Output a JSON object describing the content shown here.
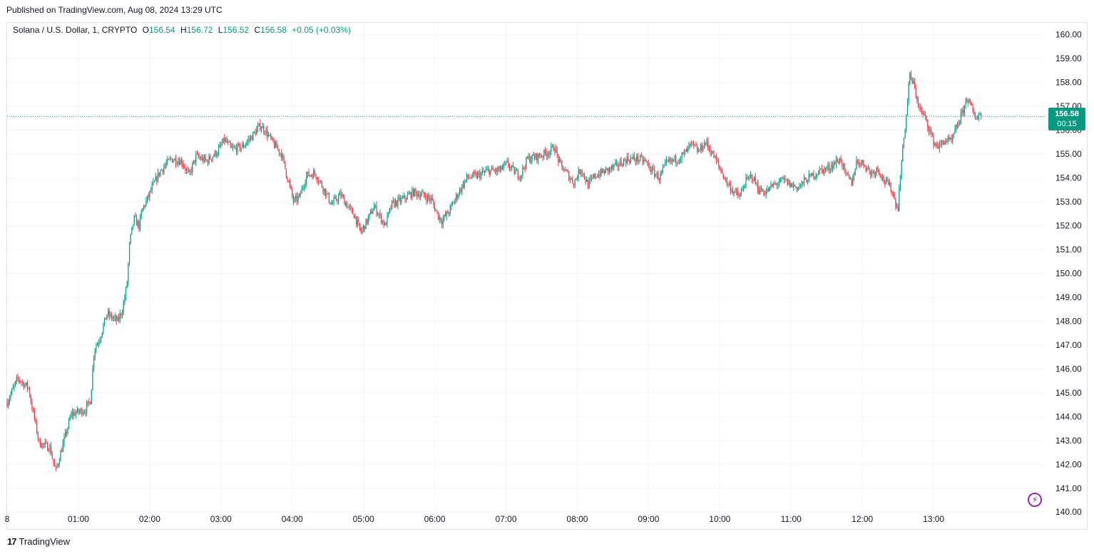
{
  "header": {
    "published": "Published on TradingView.com, Aug 08, 2024 13:29 UTC"
  },
  "legend": {
    "symbol": "Solana / U.S. Dollar, 1, CRYPTO",
    "o_label": "O",
    "o_value": "156.54",
    "h_label": "H",
    "h_value": "156.72",
    "l_label": "L",
    "l_value": "156.52",
    "c_label": "C",
    "c_value": "156.58",
    "change": "+0.05 (+0.03%)"
  },
  "price_tag": {
    "price": "156.58",
    "countdown": "00:15"
  },
  "brand": {
    "name": "TradingView",
    "logo": "17"
  },
  "colors": {
    "up": "#089981",
    "down": "#f23645",
    "grid": "#f0f3fa",
    "accent": "#9c27b0"
  },
  "chart_data": {
    "type": "candlestick",
    "interval_minutes": 1,
    "y_ticks": [
      140,
      141,
      142,
      143,
      144,
      145,
      146,
      147,
      148,
      149,
      150,
      151,
      152,
      153,
      154,
      155,
      156,
      157,
      158,
      159,
      160
    ],
    "y_tick_labels": [
      "140.00",
      "141.00",
      "142.00",
      "143.00",
      "144.00",
      "145.00",
      "146.00",
      "147.00",
      "148.00",
      "149.00",
      "150.00",
      "151.00",
      "152.00",
      "153.00",
      "154.00",
      "155.00",
      "156.00",
      "157.00",
      "158.00",
      "159.00",
      "160.00"
    ],
    "ylim": [
      139.35,
      160.5
    ],
    "x_ticks": [
      "00:00",
      "01:00",
      "02:00",
      "03:00",
      "04:00",
      "05:00",
      "06:00",
      "07:00",
      "08:00",
      "09:00",
      "10:00",
      "11:00",
      "12:00",
      "13:00"
    ],
    "x_tick_labels": [
      "8",
      "01:00",
      "02:00",
      "03:00",
      "04:00",
      "05:00",
      "06:00",
      "07:00",
      "08:00",
      "09:00",
      "10:00",
      "11:00",
      "12:00",
      "13:00"
    ],
    "xlim_hours": [
      0,
      14.55
    ],
    "last_price": 156.58,
    "close_path": [
      [
        0.0,
        144.6
      ],
      [
        0.15,
        145.6
      ],
      [
        0.3,
        145.2
      ],
      [
        0.35,
        144.4
      ],
      [
        0.45,
        142.9
      ],
      [
        0.6,
        142.7
      ],
      [
        0.68,
        141.7
      ],
      [
        0.78,
        142.8
      ],
      [
        0.9,
        144.1
      ],
      [
        1.0,
        144.2
      ],
      [
        1.1,
        144.3
      ],
      [
        1.17,
        144.7
      ],
      [
        1.22,
        146.8
      ],
      [
        1.3,
        147.3
      ],
      [
        1.4,
        148.3
      ],
      [
        1.55,
        148.0
      ],
      [
        1.62,
        148.5
      ],
      [
        1.68,
        149.5
      ],
      [
        1.72,
        151.3
      ],
      [
        1.78,
        152.3
      ],
      [
        1.85,
        152.0
      ],
      [
        1.9,
        152.7
      ],
      [
        1.98,
        153.2
      ],
      [
        2.05,
        153.7
      ],
      [
        2.15,
        154.3
      ],
      [
        2.3,
        154.8
      ],
      [
        2.45,
        154.7
      ],
      [
        2.55,
        154.1
      ],
      [
        2.65,
        154.9
      ],
      [
        2.8,
        154.7
      ],
      [
        2.95,
        155.1
      ],
      [
        3.05,
        155.6
      ],
      [
        3.15,
        155.2
      ],
      [
        3.3,
        155.3
      ],
      [
        3.45,
        155.8
      ],
      [
        3.55,
        156.2
      ],
      [
        3.62,
        156.0
      ],
      [
        3.72,
        155.5
      ],
      [
        3.85,
        155.0
      ],
      [
        3.95,
        153.8
      ],
      [
        4.02,
        153.0
      ],
      [
        4.1,
        153.2
      ],
      [
        4.2,
        154.1
      ],
      [
        4.32,
        154.2
      ],
      [
        4.45,
        153.5
      ],
      [
        4.55,
        152.9
      ],
      [
        4.68,
        153.3
      ],
      [
        4.78,
        152.8
      ],
      [
        4.88,
        152.4
      ],
      [
        4.96,
        151.7
      ],
      [
        5.05,
        152.2
      ],
      [
        5.15,
        152.8
      ],
      [
        5.25,
        152.3
      ],
      [
        5.3,
        152.0
      ],
      [
        5.4,
        152.9
      ],
      [
        5.55,
        153.1
      ],
      [
        5.7,
        153.4
      ],
      [
        5.82,
        153.3
      ],
      [
        5.95,
        153.1
      ],
      [
        6.05,
        152.4
      ],
      [
        6.1,
        152.2
      ],
      [
        6.2,
        152.6
      ],
      [
        6.3,
        153.2
      ],
      [
        6.45,
        154.0
      ],
      [
        6.6,
        154.1
      ],
      [
        6.75,
        154.3
      ],
      [
        6.9,
        154.3
      ],
      [
        7.02,
        154.6
      ],
      [
        7.1,
        154.3
      ],
      [
        7.2,
        154.1
      ],
      [
        7.3,
        154.8
      ],
      [
        7.45,
        154.9
      ],
      [
        7.6,
        155.1
      ],
      [
        7.68,
        155.3
      ],
      [
        7.75,
        154.6
      ],
      [
        7.85,
        154.2
      ],
      [
        7.95,
        153.8
      ],
      [
        8.05,
        154.4
      ],
      [
        8.15,
        153.7
      ],
      [
        8.25,
        154.1
      ],
      [
        8.4,
        154.3
      ],
      [
        8.55,
        154.5
      ],
      [
        8.7,
        154.8
      ],
      [
        8.85,
        154.8
      ],
      [
        8.95,
        154.7
      ],
      [
        9.05,
        154.3
      ],
      [
        9.15,
        154.0
      ],
      [
        9.25,
        154.6
      ],
      [
        9.4,
        154.8
      ],
      [
        9.5,
        155.0
      ],
      [
        9.6,
        155.4
      ],
      [
        9.7,
        155.1
      ],
      [
        9.8,
        155.5
      ],
      [
        9.9,
        155.0
      ],
      [
        10.0,
        154.4
      ],
      [
        10.1,
        153.8
      ],
      [
        10.2,
        153.4
      ],
      [
        10.28,
        153.2
      ],
      [
        10.35,
        153.8
      ],
      [
        10.45,
        154.1
      ],
      [
        10.55,
        153.5
      ],
      [
        10.65,
        153.4
      ],
      [
        10.75,
        153.7
      ],
      [
        10.9,
        153.9
      ],
      [
        11.0,
        153.7
      ],
      [
        11.1,
        153.6
      ],
      [
        11.2,
        153.9
      ],
      [
        11.3,
        154.1
      ],
      [
        11.4,
        154.3
      ],
      [
        11.52,
        154.4
      ],
      [
        11.6,
        154.6
      ],
      [
        11.7,
        154.8
      ],
      [
        11.75,
        154.2
      ],
      [
        11.85,
        153.8
      ],
      [
        11.92,
        154.7
      ],
      [
        12.02,
        154.6
      ],
      [
        12.12,
        154.2
      ],
      [
        12.22,
        154.4
      ],
      [
        12.3,
        153.9
      ],
      [
        12.4,
        153.6
      ],
      [
        12.47,
        152.9
      ],
      [
        12.5,
        152.8
      ],
      [
        12.54,
        154.4
      ],
      [
        12.58,
        155.6
      ],
      [
        12.62,
        156.7
      ],
      [
        12.66,
        158.3
      ],
      [
        12.72,
        157.9
      ],
      [
        12.8,
        156.9
      ],
      [
        12.9,
        156.4
      ],
      [
        13.0,
        155.5
      ],
      [
        13.08,
        155.3
      ],
      [
        13.16,
        155.6
      ],
      [
        13.25,
        155.5
      ],
      [
        13.32,
        156.1
      ],
      [
        13.4,
        156.7
      ],
      [
        13.47,
        157.4
      ],
      [
        13.52,
        157.0
      ],
      [
        13.58,
        156.5
      ],
      [
        13.64,
        156.7
      ],
      [
        13.68,
        156.58
      ]
    ]
  }
}
